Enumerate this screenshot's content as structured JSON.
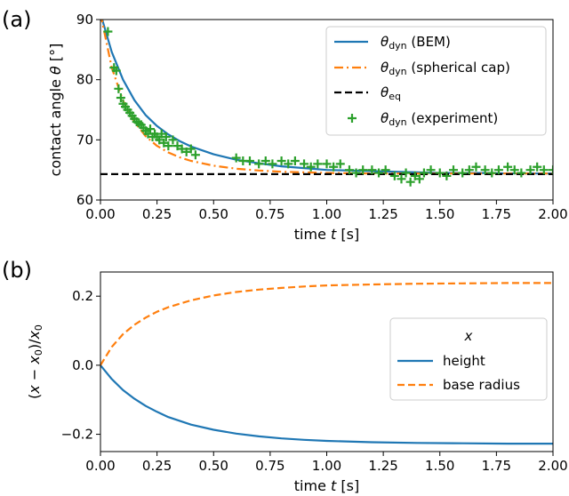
{
  "colors": {
    "bem": "#1f77b4",
    "cap": "#ff7f0e",
    "eq": "#000000",
    "exp": "#2ca02c",
    "legend_border": "#cccccc"
  },
  "chart_data": [
    {
      "type": "line",
      "panel_label": "(a)",
      "xlabel": "time t [s]",
      "ylabel": "contact angle θ [°]",
      "xlim": [
        0,
        2.0
      ],
      "ylim": [
        60,
        90
      ],
      "xticks": [
        "0.00",
        "0.25",
        "0.50",
        "0.75",
        "1.00",
        "1.25",
        "1.50",
        "1.75",
        "2.00"
      ],
      "yticks": [
        "60",
        "70",
        "80",
        "90"
      ],
      "legend_position": "upper right",
      "legend": [
        "θdyn (BEM)",
        "θdyn (spherical cap)",
        "θeq",
        "θdyn (experiment)"
      ],
      "series": [
        {
          "name": "θdyn (BEM)",
          "style": "solid",
          "x": [
            0.0,
            0.05,
            0.1,
            0.15,
            0.2,
            0.25,
            0.3,
            0.35,
            0.4,
            0.5,
            0.6,
            0.7,
            0.8,
            0.9,
            1.0,
            1.1,
            1.2,
            1.3,
            1.4,
            1.5,
            1.6,
            1.7,
            1.8,
            1.9,
            2.0
          ],
          "y": [
            91.0,
            84.6,
            80.0,
            76.6,
            74.1,
            72.3,
            70.9,
            69.8,
            68.9,
            67.6,
            66.7,
            66.1,
            65.6,
            65.3,
            65.0,
            64.9,
            64.8,
            64.7,
            64.6,
            64.5,
            64.5,
            64.5,
            64.4,
            64.4,
            64.4
          ]
        },
        {
          "name": "θdyn (spherical cap)",
          "style": "dashdot",
          "x": [
            0.0,
            0.05,
            0.1,
            0.15,
            0.2,
            0.25,
            0.3,
            0.35,
            0.4,
            0.5,
            0.6,
            0.7,
            0.8,
            0.9,
            1.0,
            1.2,
            1.4,
            1.6,
            1.8,
            2.0
          ],
          "y": [
            91.0,
            82.0,
            76.5,
            73.0,
            70.6,
            69.0,
            67.9,
            67.1,
            66.5,
            65.7,
            65.2,
            64.9,
            64.7,
            64.6,
            64.5,
            64.4,
            64.4,
            64.4,
            64.4,
            64.4
          ]
        },
        {
          "name": "θeq",
          "style": "dashed",
          "x": [
            0.0,
            2.0
          ],
          "y": [
            64.3,
            64.3
          ]
        },
        {
          "name": "θdyn (experiment)",
          "style": "plus",
          "x": [
            0.033,
            0.06,
            0.07,
            0.08,
            0.09,
            0.1,
            0.11,
            0.12,
            0.13,
            0.14,
            0.15,
            0.16,
            0.17,
            0.18,
            0.19,
            0.2,
            0.21,
            0.22,
            0.23,
            0.24,
            0.25,
            0.26,
            0.27,
            0.28,
            0.29,
            0.3,
            0.32,
            0.34,
            0.36,
            0.38,
            0.4,
            0.42,
            0.6,
            0.63,
            0.66,
            0.7,
            0.73,
            0.76,
            0.8,
            0.83,
            0.86,
            0.9,
            0.93,
            0.96,
            1.0,
            1.03,
            1.06,
            1.1,
            1.13,
            1.16,
            1.2,
            1.23,
            1.26,
            1.3,
            1.33,
            1.35,
            1.37,
            1.39,
            1.41,
            1.43,
            1.46,
            1.5,
            1.53,
            1.56,
            1.6,
            1.63,
            1.66,
            1.7,
            1.73,
            1.76,
            1.8,
            1.83,
            1.86,
            1.9,
            1.93,
            1.96,
            2.0
          ],
          "y": [
            88.0,
            82.0,
            81.5,
            78.5,
            77.0,
            76.0,
            75.5,
            75.0,
            74.5,
            74.0,
            73.5,
            73.0,
            72.8,
            72.5,
            72.0,
            71.5,
            71.0,
            71.8,
            70.5,
            71.0,
            70.5,
            70.0,
            71.0,
            69.5,
            70.5,
            69.0,
            70.0,
            69.0,
            68.5,
            68.0,
            68.5,
            67.5,
            67.0,
            66.5,
            66.5,
            66.0,
            66.5,
            66.0,
            66.5,
            66.0,
            66.5,
            66.0,
            65.5,
            66.0,
            66.0,
            65.5,
            66.0,
            65.0,
            64.5,
            65.0,
            65.0,
            64.5,
            65.0,
            64.0,
            63.5,
            64.5,
            63.0,
            64.0,
            63.5,
            64.5,
            65.0,
            64.5,
            64.0,
            65.0,
            64.5,
            65.0,
            65.5,
            65.0,
            64.5,
            65.0,
            65.5,
            65.0,
            64.5,
            65.0,
            65.5,
            65.0,
            65.0
          ]
        }
      ]
    },
    {
      "type": "line",
      "panel_label": "(b)",
      "xlabel": "time t [s]",
      "ylabel": "(x − x0)/x0",
      "xlim": [
        0,
        2.0
      ],
      "ylim": [
        -0.25,
        0.27
      ],
      "xticks": [
        "0.00",
        "0.25",
        "0.50",
        "0.75",
        "1.00",
        "1.25",
        "1.50",
        "1.75",
        "2.00"
      ],
      "yticks": [
        "−0.2",
        "0.0",
        "0.2"
      ],
      "legend_title": "x",
      "legend_position": "center right",
      "legend": [
        "height",
        "base radius"
      ],
      "series": [
        {
          "name": "height",
          "style": "solid",
          "x": [
            0.0,
            0.05,
            0.1,
            0.15,
            0.2,
            0.25,
            0.3,
            0.4,
            0.5,
            0.6,
            0.7,
            0.8,
            0.9,
            1.0,
            1.2,
            1.4,
            1.6,
            1.8,
            2.0
          ],
          "y": [
            0.0,
            -0.04,
            -0.072,
            -0.097,
            -0.118,
            -0.135,
            -0.15,
            -0.172,
            -0.187,
            -0.198,
            -0.206,
            -0.212,
            -0.216,
            -0.219,
            -0.223,
            -0.225,
            -0.226,
            -0.227,
            -0.227
          ]
        },
        {
          "name": "base radius",
          "style": "dashed",
          "x": [
            0.0,
            0.05,
            0.1,
            0.15,
            0.2,
            0.25,
            0.3,
            0.4,
            0.5,
            0.6,
            0.7,
            0.8,
            0.9,
            1.0,
            1.2,
            1.4,
            1.6,
            1.8,
            2.0
          ],
          "y": [
            0.0,
            0.053,
            0.09,
            0.117,
            0.138,
            0.155,
            0.168,
            0.188,
            0.202,
            0.212,
            0.219,
            0.224,
            0.228,
            0.231,
            0.234,
            0.236,
            0.237,
            0.238,
            0.238
          ]
        }
      ]
    }
  ]
}
